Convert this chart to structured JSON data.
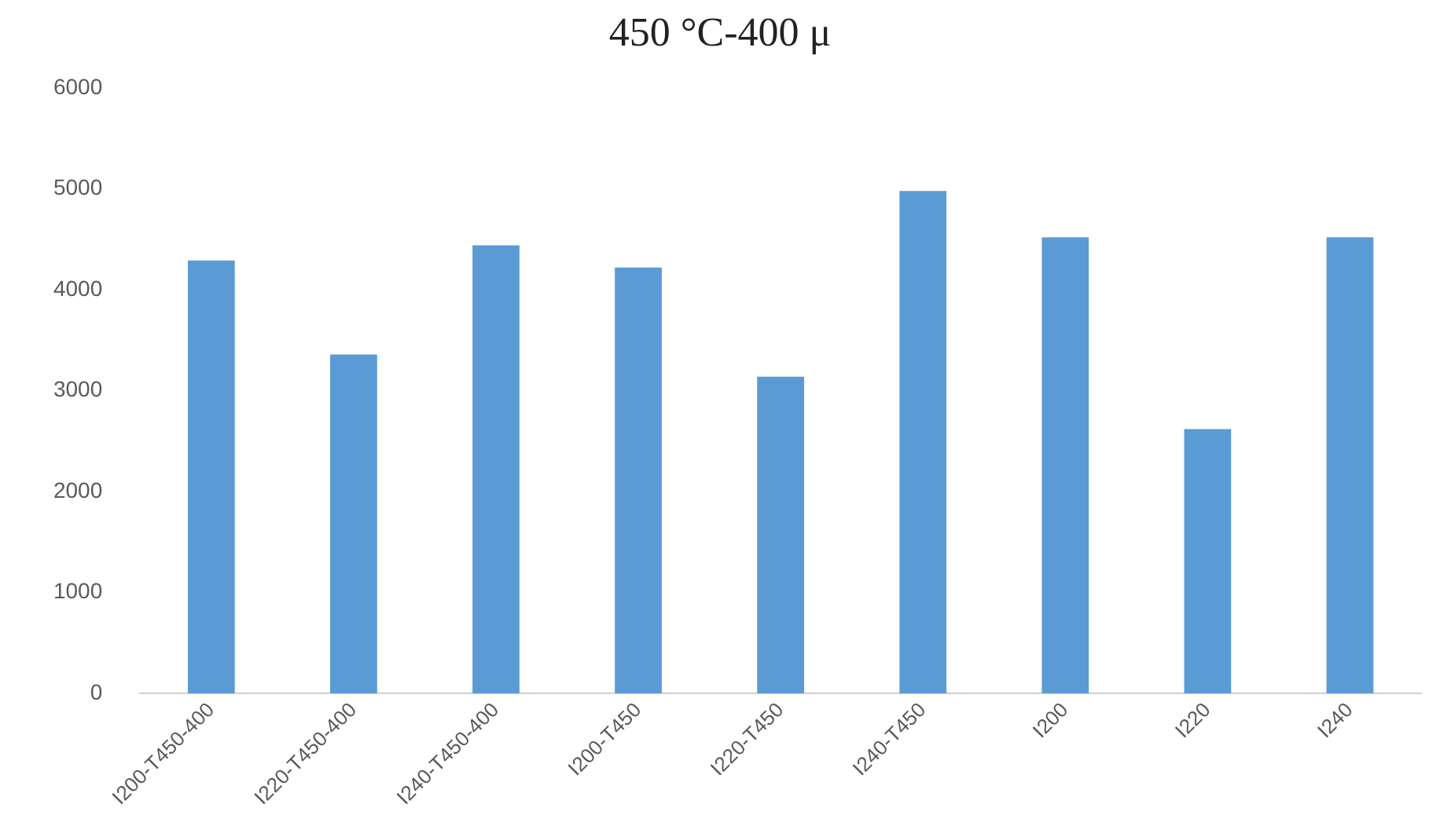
{
  "chart_data": {
    "type": "bar",
    "title": "450 °C-400 μ",
    "categories": [
      "I200-T450-400",
      "I220-T450-400",
      "I240-T450-400",
      "I200-T450",
      "I220-T450",
      "I240-T450",
      "I200",
      "I220",
      "I240"
    ],
    "values": [
      4290,
      3360,
      4440,
      4220,
      3140,
      4980,
      4520,
      2620,
      4520
    ],
    "color": "#5b9bd5",
    "ylim": [
      0,
      6000
    ],
    "yticks": [
      0,
      1000,
      2000,
      3000,
      4000,
      5000,
      6000
    ],
    "grid": false,
    "legend": false
  }
}
